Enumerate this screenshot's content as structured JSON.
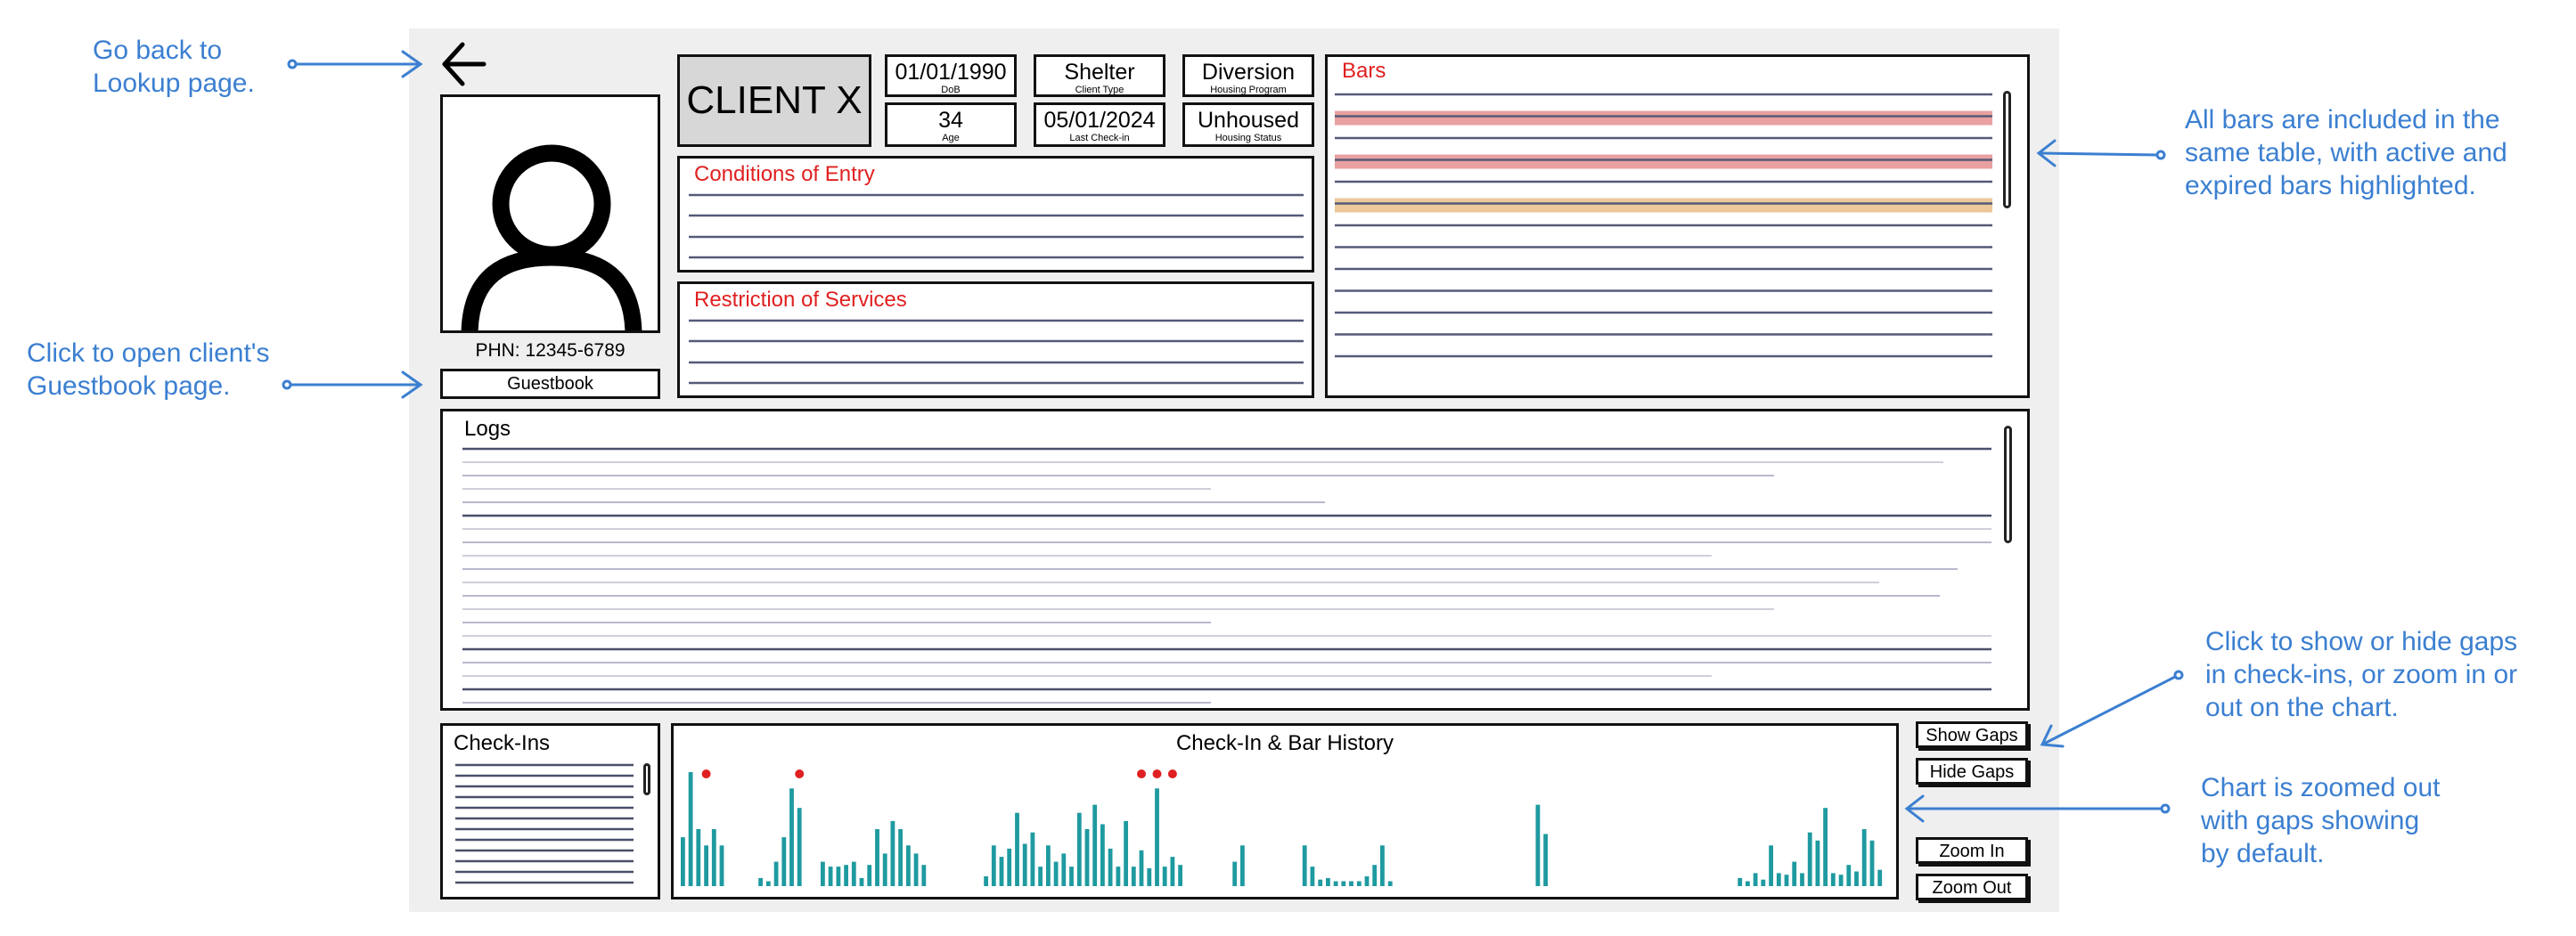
{
  "header": {
    "client_name": "CLIENT X",
    "fields": [
      {
        "value": "01/01/1990",
        "label": "DoB"
      },
      {
        "value": "Shelter",
        "label": "Client Type"
      },
      {
        "value": "Diversion",
        "label": "Housing Program"
      },
      {
        "value": "34",
        "label": "Age"
      },
      {
        "value": "05/01/2024",
        "label": "Last Check-in"
      },
      {
        "value": "Unhoused",
        "label": "Housing Status"
      }
    ]
  },
  "profile": {
    "phn": "PHN: 12345-6789",
    "guestbook_label": "Guestbook",
    "back_icon": "arrow-left-icon",
    "photo_icon": "user-silhouette-icon"
  },
  "sections": {
    "conditions_title": "Conditions of Entry",
    "restrictions_title": "Restriction of Services",
    "bars_title": "Bars",
    "logs_title": "Logs",
    "checkins_title": "Check-Ins"
  },
  "chart_controls": {
    "show_gaps": "Show Gaps",
    "hide_gaps": "Hide Gaps",
    "zoom_in": "Zoom In",
    "zoom_out": "Zoom Out"
  },
  "annotations": {
    "back": "Go back to\nLookup page.",
    "guestbook": "Click to open client's\nGuestbook page.",
    "bars": "All bars are included in the\nsame table, with active and\nexpired bars highlighted.",
    "gaps": "Click to show or hide gaps\nin check-ins, or zoom in or\nout on the chart.",
    "zoom": "Chart is zoomed out\nwith gaps showing\nby default."
  },
  "colors": {
    "annotation": "#3b7fd1",
    "accent_red": "#e02020",
    "bar_teal": "#1e9aa0",
    "active_bar_row": "#e8a0a0",
    "expired_bar_row": "#ecc89a"
  },
  "bars_table": {
    "rows": [
      "plain",
      "active",
      "plain",
      "active",
      "plain",
      "expired",
      "plain",
      "plain",
      "plain",
      "plain",
      "plain",
      "plain",
      "plain"
    ]
  },
  "chart_data": {
    "type": "bar",
    "title": "Check-In & Bar History",
    "values": [
      3,
      7,
      3.5,
      2.5,
      3.5,
      2.5,
      0,
      0,
      0,
      0,
      0.5,
      0.3,
      1.5,
      3,
      6,
      4.8,
      0,
      0,
      1.5,
      1.2,
      1.2,
      1.3,
      1.5,
      0.5,
      1.3,
      3.5,
      2,
      4,
      3.5,
      2.5,
      2,
      1.3,
      0,
      0,
      0,
      0,
      0,
      0,
      0,
      0.6,
      2.5,
      1.8,
      2.3,
      4.5,
      2.6,
      3.3,
      1.2,
      2.5,
      1.5,
      2,
      1.2,
      4.5,
      3.5,
      5,
      3.8,
      2.3,
      1.2,
      4,
      1.2,
      2.2,
      1.1,
      6,
      1.2,
      1.8,
      1.3,
      0,
      0,
      0,
      0,
      0,
      0,
      1.5,
      2.5,
      0,
      0,
      0,
      0,
      0,
      0,
      0,
      2.5,
      1.2,
      0.4,
      0.5,
      0.3,
      0.3,
      0.3,
      0.3,
      0.6,
      1.3,
      2.5,
      0.3,
      0,
      0,
      0,
      0,
      0,
      0,
      0,
      0,
      0,
      0,
      0,
      0,
      0,
      0,
      0,
      0,
      0,
      0,
      5,
      3.2,
      0,
      0,
      0,
      0,
      0,
      0,
      0,
      0,
      0,
      0,
      0,
      0,
      0,
      0,
      0,
      0,
      0,
      0,
      0,
      0,
      0,
      0,
      0,
      0,
      0.5,
      0.3,
      0.8,
      0.4,
      2.5,
      0.8,
      0.7,
      1.5,
      0.8,
      3.3,
      2.8,
      4.8,
      0.8,
      0.7,
      1.3,
      0.9,
      3.5,
      2.8,
      1
    ],
    "bar_event_indices": [
      3,
      15,
      59,
      61,
      63
    ]
  }
}
